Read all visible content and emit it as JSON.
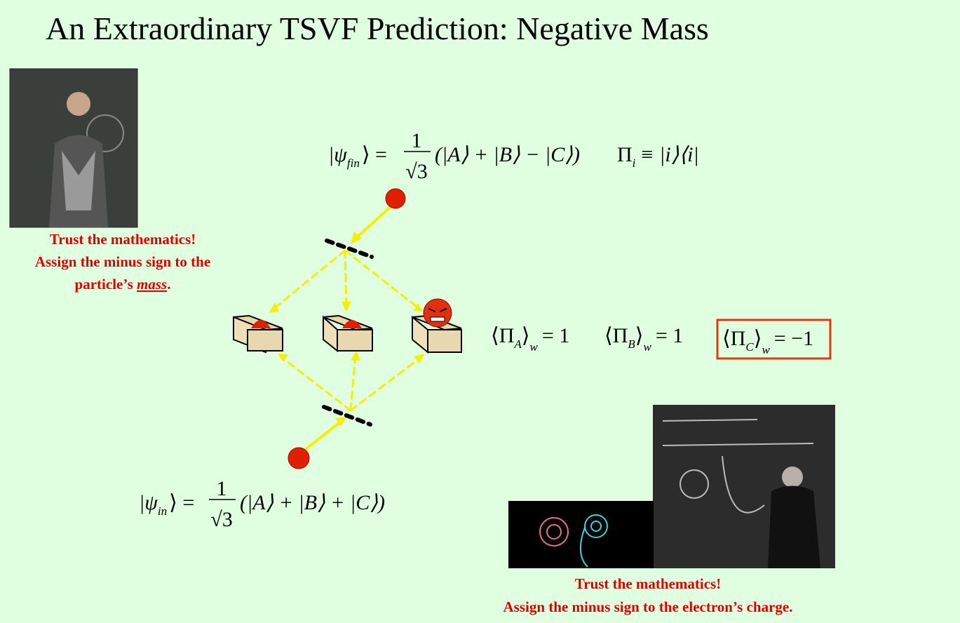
{
  "title": "An Extraordinary TSVF Prediction: Negative Mass",
  "left_caption": {
    "line1": "Trust the mathematics!",
    "line2": "Assign the minus sign to the",
    "line3_prefix": "particle’s ",
    "line3_emph": "mass",
    "line3_suffix": "."
  },
  "right_caption": {
    "line1": "Trust the mathematics!",
    "line2": "Assign the minus sign to the electron’s charge."
  },
  "equations": {
    "psi_fin": {
      "ket": "|ψ",
      "sub": "fin",
      "close": "⟩ =",
      "numerator": "1",
      "denominator": "√3",
      "sum": "(|A⟩ + |B⟩ − |C⟩)"
    },
    "projector": {
      "lhs": "Π",
      "sub": "i",
      "rhs": "≡ |i⟩⟨i|"
    },
    "psi_in": {
      "ket": "|ψ",
      "sub": "in",
      "close": "⟩ =",
      "numerator": "1",
      "denominator": "√3",
      "sum": "(|A⟩ + |B⟩ + |C⟩)"
    },
    "weak_values": [
      {
        "open": "⟨Π",
        "sub": "A",
        "close": "⟩",
        "w": "w",
        "rhs": "= 1"
      },
      {
        "open": "⟨Π",
        "sub": "B",
        "close": "⟩",
        "w": "w",
        "rhs": "= 1"
      },
      {
        "open": "⟨Π",
        "sub": "C",
        "close": "⟩",
        "w": "w",
        "rhs": "= −1"
      }
    ]
  }
}
